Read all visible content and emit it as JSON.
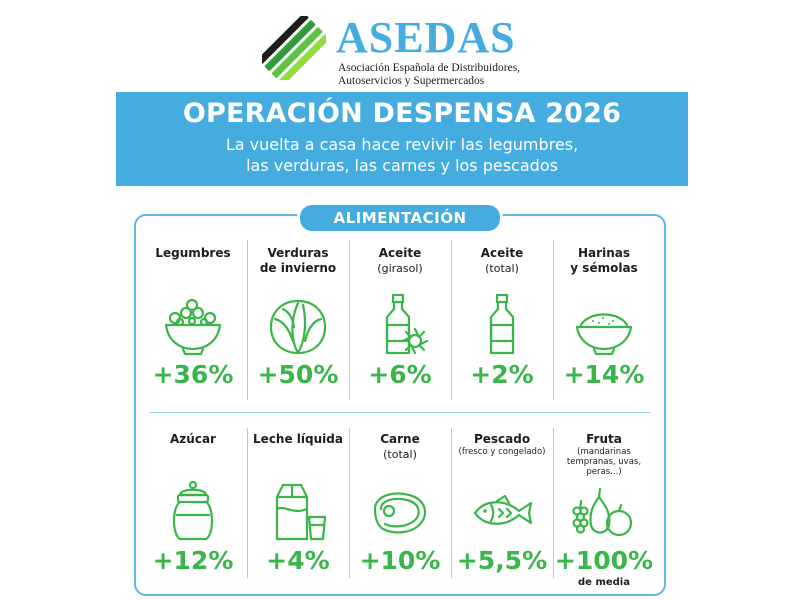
{
  "header": {
    "brand_name": "ASEDAS",
    "brand_line1": "Asociación Española de Distribuidores,",
    "brand_line2": "Autoservicios y Supermercados"
  },
  "banner": {
    "title": "OPERACIÓN DESPENSA 2026",
    "subtitle_line1": "La vuelta a casa hace revivir las legumbres,",
    "subtitle_line2": "las verduras, las carnes y los pescados"
  },
  "section": {
    "title": "ALIMENTACIÓN"
  },
  "items": [
    {
      "name": "Legumbres",
      "name2": "",
      "detail": "",
      "value": "+36%",
      "icon": "bowl-of-legumes-icon"
    },
    {
      "name": "Verduras",
      "name2": "de invierno",
      "detail": "",
      "value": "+50%",
      "icon": "cabbage-icon"
    },
    {
      "name": "Aceite",
      "name2": "",
      "detail": "(girasol)",
      "value": "+6%",
      "icon": "sunflower-oil-bottle-icon"
    },
    {
      "name": "Aceite",
      "name2": "",
      "detail": "(total)",
      "value": "+2%",
      "icon": "oil-bottle-icon"
    },
    {
      "name": "Harinas",
      "name2": "y sémolas",
      "detail": "",
      "value": "+14%",
      "icon": "flour-bowl-icon"
    },
    {
      "name": "Azúcar",
      "name2": "",
      "detail": "",
      "value": "+12%",
      "icon": "sugar-jar-icon"
    },
    {
      "name": "Leche líquida",
      "name2": "",
      "detail": "",
      "value": "+4%",
      "icon": "milk-carton-icon"
    },
    {
      "name": "Carne",
      "name2": "",
      "detail": "(total)",
      "value": "+10%",
      "icon": "steak-icon"
    },
    {
      "name": "Pescado",
      "name2": "",
      "detail": "(fresco y congelado)",
      "value": "+5,5%",
      "icon": "fish-icon"
    },
    {
      "name": "Fruta",
      "name2": "",
      "detail": "(mandarinas tempranas, uvas, peras...)",
      "value": "+100%",
      "note": "de media",
      "icon": "fruit-icon"
    }
  ],
  "colors": {
    "banner": "#45ace0",
    "accent_green": "#39b54a",
    "logo_dark": "#1d1d1b",
    "brand_blue": "#45ace0"
  }
}
